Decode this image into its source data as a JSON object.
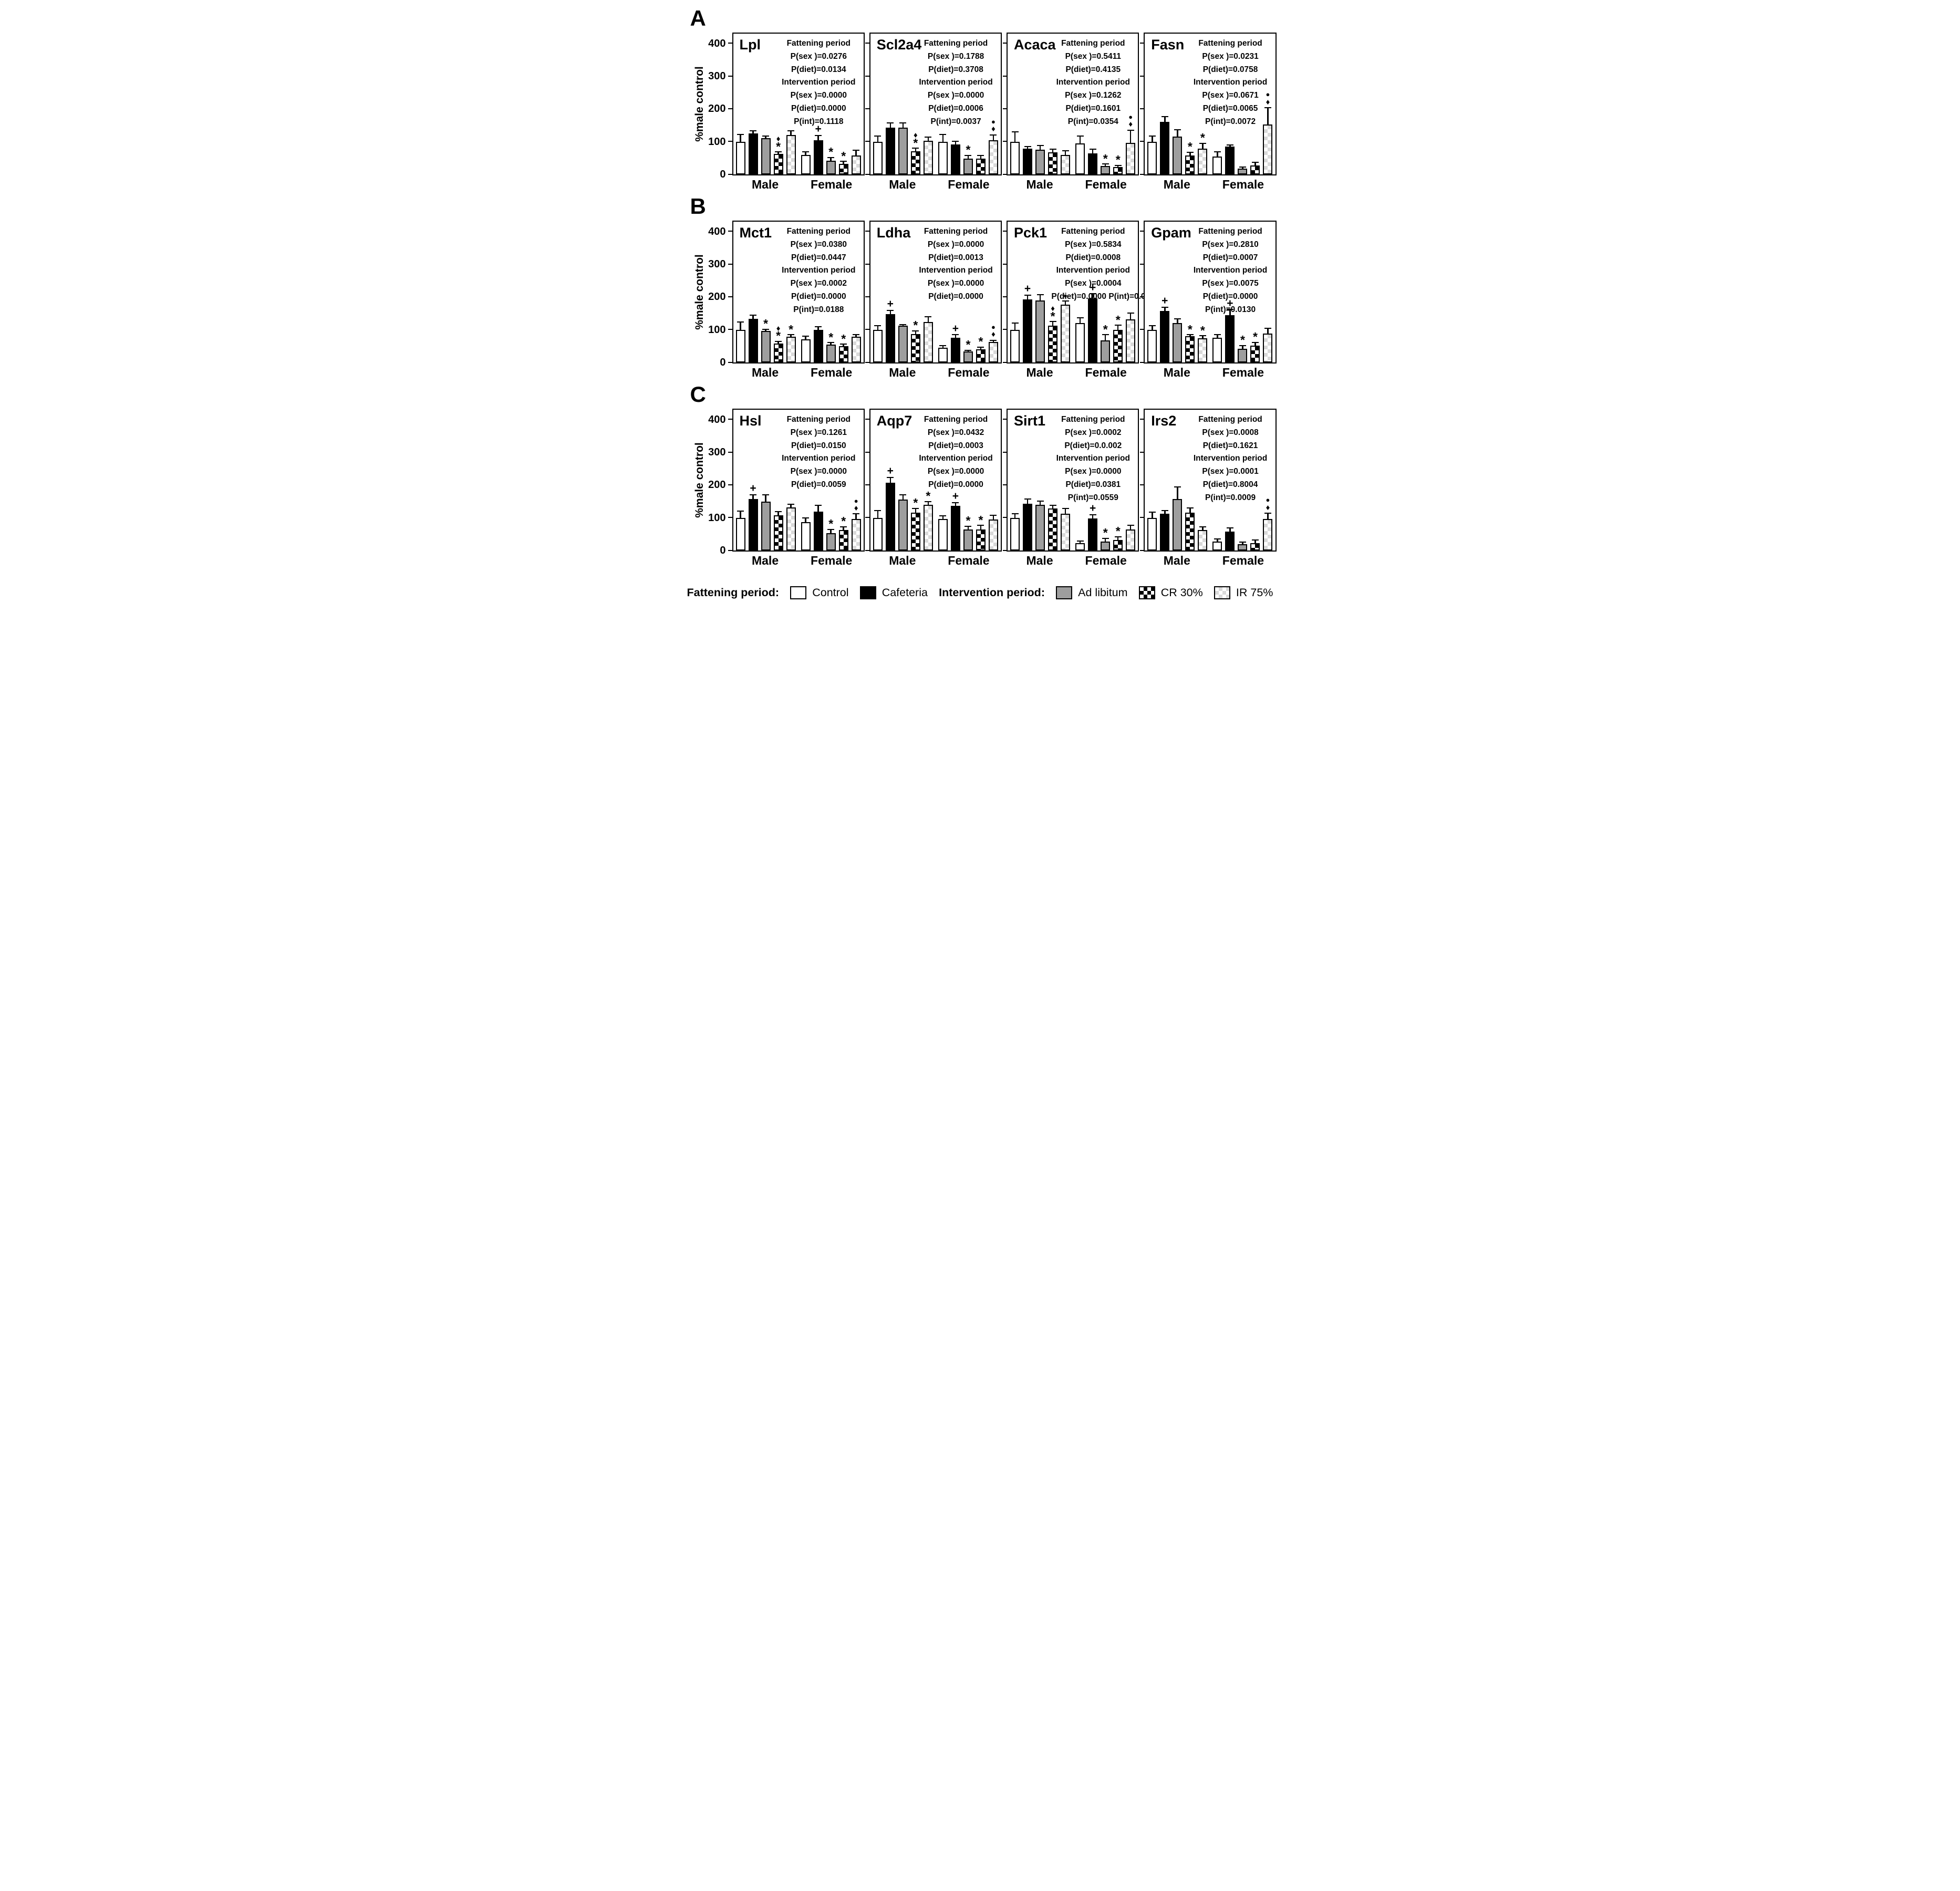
{
  "figure": {
    "row_labels": [
      "A",
      "B",
      "C"
    ],
    "y_axis_label": "%male control",
    "y_ticks": [
      400,
      300,
      200,
      100,
      0
    ],
    "ylim": [
      0,
      430
    ],
    "group_labels": [
      "Male",
      "Female"
    ],
    "series_labels": [
      "Control",
      "Cafeteria",
      "Ad libitum",
      "CR 30%",
      "IR 75%"
    ],
    "series_fills": [
      "white",
      "black",
      "gray",
      "check-dark",
      "check-light"
    ],
    "colors": {
      "bar_gray": "#9e9e9e",
      "bar_check_light": "#d9d9d9",
      "ink": "#000000"
    },
    "legend": {
      "fattening_label": "Fattening period:",
      "intervention_label": "Intervention period:",
      "items": [
        {
          "label": "Control",
          "fill": "white"
        },
        {
          "label": "Cafeteria",
          "fill": "black"
        },
        {
          "label": "Ad libitum",
          "fill": "gray"
        },
        {
          "label": "CR 30%",
          "fill": "check-dark"
        },
        {
          "label": "IR 75%",
          "fill": "check-light"
        }
      ]
    }
  },
  "chart_data": [
    {
      "row": "A",
      "title": "Lpl",
      "type": "bar",
      "groups": [
        "Male",
        "Female"
      ],
      "series": [
        "Control",
        "Cafeteria",
        "Ad libitum",
        "CR 30%",
        "IR 75%"
      ],
      "values": {
        "Male": [
          100,
          125,
          110,
          62,
          120
        ],
        "Female": [
          60,
          105,
          42,
          32,
          58
        ]
      },
      "errors": {
        "Male": [
          20,
          7,
          5,
          5,
          12
        ],
        "Female": [
          8,
          12,
          8,
          6,
          15
        ]
      },
      "markers": {
        "Male": [
          [],
          [],
          [],
          [
            "♦",
            "*"
          ],
          []
        ],
        "Female": [
          [],
          [
            "+"
          ],
          [
            "*"
          ],
          [
            "*"
          ],
          []
        ]
      },
      "stats": [
        {
          "text": "Fattening period",
          "header": true
        },
        {
          "text": "P(sex )=0.0276"
        },
        {
          "text": "P(diet)=0.0134"
        },
        {
          "text": "Intervention period",
          "header": true
        },
        {
          "text": "P(sex )=0.0000"
        },
        {
          "text": "P(diet)=0.0000"
        },
        {
          "text": "P(int)=0.1118"
        }
      ]
    },
    {
      "row": "A",
      "title": "Scl2a4",
      "type": "bar",
      "groups": [
        "Male",
        "Female"
      ],
      "series": [
        "Control",
        "Cafeteria",
        "Ad libitum",
        "CR 30%",
        "IR 75%"
      ],
      "values": {
        "Male": [
          100,
          143,
          143,
          70,
          102
        ],
        "Female": [
          100,
          91,
          48,
          48,
          104
        ]
      },
      "errors": {
        "Male": [
          15,
          12,
          12,
          8,
          10
        ],
        "Female": [
          20,
          8,
          8,
          8,
          15
        ]
      },
      "markers": {
        "Male": [
          [],
          [],
          [],
          [
            "♦",
            "*"
          ],
          []
        ],
        "Female": [
          [],
          [],
          [
            "*"
          ],
          [],
          [
            "●",
            "♦"
          ]
        ]
      },
      "stats": [
        {
          "text": "Fattening period",
          "header": true
        },
        {
          "text": "P(sex )=0.1788"
        },
        {
          "text": "P(diet)=0.3708"
        },
        {
          "text": "Intervention period",
          "header": true
        },
        {
          "text": "P(sex )=0.0000"
        },
        {
          "text": "P(diet)=0.0006"
        },
        {
          "text": "P(int)=0.0037"
        }
      ]
    },
    {
      "row": "A",
      "title": "Acaca",
      "type": "bar",
      "groups": [
        "Male",
        "Female"
      ],
      "series": [
        "Control",
        "Cafeteria",
        "Ad libitum",
        "CR 30%",
        "IR 75%"
      ],
      "values": {
        "Male": [
          100,
          78,
          76,
          67,
          60
        ],
        "Female": [
          95,
          65,
          25,
          23,
          96
        ]
      },
      "errors": {
        "Male": [
          28,
          5,
          10,
          8,
          10
        ],
        "Female": [
          20,
          10,
          5,
          3,
          38
        ]
      },
      "markers": {
        "Male": [
          [],
          [],
          [],
          [],
          []
        ],
        "Female": [
          [],
          [],
          [
            "*"
          ],
          [
            "*"
          ],
          [
            "●",
            "♦"
          ]
        ]
      },
      "stats": [
        {
          "text": "Fattening period",
          "header": true
        },
        {
          "text": "P(sex )=0.5411"
        },
        {
          "text": "P(diet)=0.4135"
        },
        {
          "text": "Intervention period",
          "header": true
        },
        {
          "text": "P(sex )=0.1262"
        },
        {
          "text": "P(diet)=0.1601"
        },
        {
          "text": "P(int)=0.0354"
        }
      ]
    },
    {
      "row": "A",
      "title": "Fasn",
      "type": "bar",
      "groups": [
        "Male",
        "Female"
      ],
      "series": [
        "Control",
        "Cafeteria",
        "Ad libitum",
        "CR 30%",
        "IR 75%"
      ],
      "values": {
        "Male": [
          100,
          160,
          115,
          58,
          78
        ],
        "Female": [
          55,
          85,
          18,
          28,
          152
        ]
      },
      "errors": {
        "Male": [
          15,
          15,
          20,
          8,
          15
        ],
        "Female": [
          12,
          3,
          3,
          8,
          50
        ]
      },
      "markers": {
        "Male": [
          [],
          [],
          [],
          [
            "*"
          ],
          [
            "*"
          ]
        ],
        "Female": [
          [],
          [],
          [],
          [],
          [
            "●",
            "♦"
          ]
        ]
      },
      "stats": [
        {
          "text": "Fattening period",
          "header": true
        },
        {
          "text": "P(sex )=0.0231"
        },
        {
          "text": "P(diet)=0.0758"
        },
        {
          "text": "Intervention period",
          "header": true
        },
        {
          "text": "P(sex )=0.0671"
        },
        {
          "text": "P(diet)=0.0065"
        },
        {
          "text": "P(int)=0.0072"
        }
      ]
    },
    {
      "row": "B",
      "title": "Mct1",
      "type": "bar",
      "groups": [
        "Male",
        "Female"
      ],
      "series": [
        "Control",
        "Cafeteria",
        "Ad libitum",
        "CR 30%",
        "IR 75%"
      ],
      "values": {
        "Male": [
          100,
          133,
          97,
          58,
          79
        ],
        "Female": [
          70,
          100,
          55,
          49,
          78
        ]
      },
      "errors": {
        "Male": [
          22,
          10,
          3,
          5,
          4
        ],
        "Female": [
          8,
          8,
          4,
          5,
          6
        ]
      },
      "markers": {
        "Male": [
          [],
          [],
          [
            "*"
          ],
          [
            "♦",
            "*"
          ],
          [
            "*"
          ]
        ],
        "Female": [
          [],
          [],
          [
            "*"
          ],
          [
            "*"
          ],
          []
        ]
      },
      "stats": [
        {
          "text": "Fattening period",
          "header": true
        },
        {
          "text": "P(sex )=0.0380"
        },
        {
          "text": "P(diet)=0.0447"
        },
        {
          "text": "Intervention period",
          "header": true
        },
        {
          "text": "P(sex )=0.0002"
        },
        {
          "text": "P(diet)=0.0000"
        },
        {
          "text": "P(int)=0.0188"
        }
      ]
    },
    {
      "row": "B",
      "title": "Ldha",
      "type": "bar",
      "groups": [
        "Male",
        "Female"
      ],
      "series": [
        "Control",
        "Cafeteria",
        "Ad libitum",
        "CR 30%",
        "IR 75%"
      ],
      "values": {
        "Male": [
          100,
          148,
          112,
          87,
          123
        ],
        "Female": [
          45,
          75,
          33,
          40,
          62
        ]
      },
      "errors": {
        "Male": [
          10,
          10,
          2,
          8,
          15
        ],
        "Female": [
          5,
          8,
          3,
          5,
          4
        ]
      },
      "markers": {
        "Male": [
          [],
          [
            "+"
          ],
          [],
          [
            "*"
          ],
          []
        ],
        "Female": [
          [],
          [
            "+"
          ],
          [
            "*"
          ],
          [
            "*"
          ],
          [
            "●",
            "♦"
          ]
        ]
      },
      "stats": [
        {
          "text": "Fattening period",
          "header": true
        },
        {
          "text": "P(sex )=0.0000"
        },
        {
          "text": "P(diet)=0.0013"
        },
        {
          "text": "Intervention period",
          "header": true
        },
        {
          "text": "P(sex )=0.0000"
        },
        {
          "text": "P(diet)=0.0000"
        }
      ]
    },
    {
      "row": "B",
      "title": "Pck1",
      "type": "bar",
      "groups": [
        "Male",
        "Female"
      ],
      "series": [
        "Control",
        "Cafeteria",
        "Ad libitum",
        "CR 30%",
        "IR 75%"
      ],
      "values": {
        "Male": [
          100,
          192,
          190,
          113,
          176
        ],
        "Female": [
          120,
          196,
          68,
          100,
          131
        ]
      },
      "errors": {
        "Male": [
          18,
          12,
          15,
          10,
          10
        ],
        "Female": [
          15,
          12,
          15,
          12,
          18
        ]
      },
      "markers": {
        "Male": [
          [],
          [
            "+"
          ],
          [],
          [
            "♦",
            "*"
          ],
          [
            "●"
          ]
        ],
        "Female": [
          [],
          [
            "+"
          ],
          [
            "*"
          ],
          [
            "*"
          ],
          []
        ]
      },
      "stats": [
        {
          "text": "Fattening period",
          "header": true
        },
        {
          "text": "P(sex )=0.5834"
        },
        {
          "text": "P(diet)=0.0008"
        },
        {
          "text": "Intervention period",
          "header": true
        },
        {
          "text": "P(sex )=0.0004"
        },
        {
          "text": "P(diet)=0.0000 P(int)=0.0019"
        }
      ]
    },
    {
      "row": "B",
      "title": "Gpam",
      "type": "bar",
      "groups": [
        "Male",
        "Female"
      ],
      "series": [
        "Control",
        "Cafeteria",
        "Ad libitum",
        "CR 30%",
        "IR 75%"
      ],
      "values": {
        "Male": [
          100,
          157,
          120,
          80,
          74
        ],
        "Female": [
          76,
          145,
          42,
          52,
          88
        ]
      },
      "errors": {
        "Male": [
          10,
          10,
          12,
          3,
          6
        ],
        "Female": [
          8,
          15,
          8,
          8,
          15
        ]
      },
      "markers": {
        "Male": [
          [],
          [
            "+"
          ],
          [],
          [
            "*"
          ],
          [
            "*"
          ]
        ],
        "Female": [
          [],
          [
            "+"
          ],
          [
            "*"
          ],
          [
            "*"
          ],
          []
        ]
      },
      "stats": [
        {
          "text": "Fattening period",
          "header": true
        },
        {
          "text": "P(sex )=0.2810"
        },
        {
          "text": "P(diet)=0.0007"
        },
        {
          "text": "Intervention period",
          "header": true
        },
        {
          "text": "P(sex )=0.0075"
        },
        {
          "text": "P(diet)=0.0000"
        },
        {
          "text": "P(int)=0.0130"
        }
      ]
    },
    {
      "row": "C",
      "title": "Hsl",
      "type": "bar",
      "groups": [
        "Male",
        "Female"
      ],
      "series": [
        "Control",
        "Cafeteria",
        "Ad libitum",
        "CR 30%",
        "IR 75%"
      ],
      "values": {
        "Male": [
          100,
          157,
          149,
          107,
          132
        ],
        "Female": [
          86,
          119,
          53,
          63,
          97
        ]
      },
      "errors": {
        "Male": [
          18,
          12,
          20,
          10,
          8
        ],
        "Female": [
          12,
          18,
          10,
          8,
          13
        ]
      },
      "markers": {
        "Male": [
          [],
          [
            "+"
          ],
          [],
          [],
          []
        ],
        "Female": [
          [],
          [],
          [
            "*"
          ],
          [
            "*"
          ],
          [
            "●",
            "♦"
          ]
        ]
      },
      "stats": [
        {
          "text": "Fattening period",
          "header": true
        },
        {
          "text": "P(sex )=0.1261"
        },
        {
          "text": "P(diet)=0.0150"
        },
        {
          "text": "Intervention period",
          "header": true
        },
        {
          "text": "P(sex )=0.0000"
        },
        {
          "text": "P(diet)=0.0059"
        }
      ]
    },
    {
      "row": "C",
      "title": "Aqp7",
      "type": "bar",
      "groups": [
        "Male",
        "Female"
      ],
      "series": [
        "Control",
        "Cafeteria",
        "Ad libitum",
        "CR 30%",
        "IR 75%"
      ],
      "values": {
        "Male": [
          100,
          207,
          156,
          115,
          140
        ],
        "Female": [
          96,
          137,
          65,
          65,
          94
        ]
      },
      "errors": {
        "Male": [
          20,
          15,
          12,
          12,
          8
        ],
        "Female": [
          8,
          8,
          8,
          10,
          12
        ]
      },
      "markers": {
        "Male": [
          [],
          [
            "+"
          ],
          [],
          [
            "*"
          ],
          [
            "*"
          ]
        ],
        "Female": [
          [],
          [
            "+"
          ],
          [
            "*"
          ],
          [
            "*"
          ],
          []
        ]
      },
      "stats": [
        {
          "text": "Fattening period",
          "header": true
        },
        {
          "text": "P(sex )=0.0432"
        },
        {
          "text": "P(diet)=0.0003"
        },
        {
          "text": "Intervention period",
          "header": true
        },
        {
          "text": "P(sex )=0.0000"
        },
        {
          "text": "P(diet)=0.0000"
        }
      ]
    },
    {
      "row": "C",
      "title": "Sirt1",
      "type": "bar",
      "groups": [
        "Male",
        "Female"
      ],
      "series": [
        "Control",
        "Cafeteria",
        "Ad libitum",
        "CR 30%",
        "IR 75%"
      ],
      "values": {
        "Male": [
          100,
          143,
          139,
          128,
          112
        ],
        "Female": [
          22,
          98,
          28,
          32,
          65
        ]
      },
      "errors": {
        "Male": [
          10,
          12,
          10,
          8,
          15
        ],
        "Female": [
          5,
          10,
          8,
          8,
          10
        ]
      },
      "markers": {
        "Male": [
          [],
          [],
          [],
          [],
          []
        ],
        "Female": [
          [],
          [
            "+"
          ],
          [
            "*"
          ],
          [
            "*"
          ],
          []
        ]
      },
      "stats": [
        {
          "text": "Fattening period",
          "header": true
        },
        {
          "text": "P(sex )=0.0002"
        },
        {
          "text": "P(diet)=0.0.002"
        },
        {
          "text": "Intervention period",
          "header": true
        },
        {
          "text": "P(sex )=0.0000"
        },
        {
          "text": "P(diet)=0.0381"
        },
        {
          "text": "P(int)=0.0559"
        }
      ]
    },
    {
      "row": "C",
      "title": "Irs2",
      "type": "bar",
      "groups": [
        "Male",
        "Female"
      ],
      "series": [
        "Control",
        "Cafeteria",
        "Ad libitum",
        "CR 30%",
        "IR 75%"
      ],
      "values": {
        "Male": [
          100,
          113,
          158,
          115,
          62
        ],
        "Female": [
          27,
          57,
          20,
          23,
          97
        ]
      },
      "errors": {
        "Male": [
          15,
          7,
          35,
          13,
          8
        ],
        "Female": [
          6,
          10,
          4,
          8,
          15
        ]
      },
      "markers": {
        "Male": [
          [],
          [],
          [],
          [],
          []
        ],
        "Female": [
          [],
          [],
          [],
          [],
          [
            "●",
            "♦"
          ]
        ]
      },
      "stats": [
        {
          "text": "Fattening period",
          "header": true
        },
        {
          "text": "P(sex )=0.0008"
        },
        {
          "text": "P(diet)=0.1621"
        },
        {
          "text": "Intervention period",
          "header": true
        },
        {
          "text": "P(sex )=0.0001"
        },
        {
          "text": "P(diet)=0.8004"
        },
        {
          "text": "P(int)=0.0009"
        }
      ]
    }
  ]
}
